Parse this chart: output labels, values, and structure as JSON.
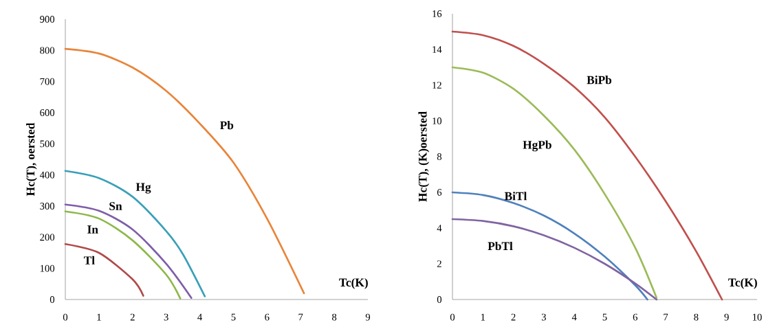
{
  "chart_data": [
    {
      "type": "line",
      "xlabel": "Tc(K)",
      "ylabel": "Hc(T), oersted",
      "xlim": [
        0,
        9
      ],
      "ylim": [
        0,
        900
      ],
      "xticks": [
        0,
        1,
        2,
        3,
        4,
        5,
        6,
        7,
        8,
        9
      ],
      "yticks": [
        0,
        100,
        200,
        300,
        400,
        500,
        600,
        700,
        800,
        900
      ],
      "series": [
        {
          "name": "Pb",
          "color": "#e8853a",
          "x": [
            0,
            1,
            2,
            3,
            4,
            5,
            6,
            7.1
          ],
          "values": [
            805,
            790,
            745,
            670,
            565,
            440,
            260,
            20
          ]
        },
        {
          "name": "Hg",
          "color": "#3aa0b8",
          "x": [
            0,
            1,
            2,
            3,
            3.5,
            4.15
          ],
          "values": [
            413,
            390,
            330,
            220,
            145,
            10
          ]
        },
        {
          "name": "Sn",
          "color": "#7f5ea8",
          "x": [
            0,
            1,
            2,
            3,
            3.75
          ],
          "values": [
            305,
            285,
            225,
            115,
            5
          ]
        },
        {
          "name": "In",
          "color": "#8db84a",
          "x": [
            0,
            1,
            2,
            3,
            3.42
          ],
          "values": [
            283,
            260,
            190,
            80,
            3
          ]
        },
        {
          "name": "Tl",
          "color": "#b04a4a",
          "x": [
            0,
            1,
            2,
            2.32
          ],
          "values": [
            178,
            150,
            65,
            12
          ]
        }
      ]
    },
    {
      "type": "line",
      "xlabel": "Tc(K)",
      "ylabel": "Hc(T), (K)oersted",
      "xlim": [
        0,
        10
      ],
      "ylim": [
        0,
        16
      ],
      "xticks": [
        0,
        1,
        2,
        3,
        4,
        5,
        6,
        7,
        8,
        9,
        10
      ],
      "yticks": [
        0,
        2,
        4,
        6,
        8,
        10,
        12,
        14,
        16
      ],
      "series": [
        {
          "name": "BiPb",
          "color": "#c0504d",
          "x": [
            0,
            1,
            2,
            3,
            4,
            5,
            6,
            7,
            8,
            8.85
          ],
          "values": [
            15,
            14.8,
            14.2,
            13.2,
            11.9,
            10.2,
            8.0,
            5.5,
            2.7,
            0
          ]
        },
        {
          "name": "HgPb",
          "color": "#9bbb59",
          "x": [
            0,
            1,
            2,
            3,
            4,
            5,
            6,
            6.7
          ],
          "values": [
            13,
            12.7,
            11.8,
            10.3,
            8.4,
            5.9,
            2.9,
            0.1
          ]
        },
        {
          "name": "BiTl",
          "color": "#4f81bd",
          "x": [
            0,
            1,
            2,
            3,
            4,
            5,
            6,
            6.4
          ],
          "values": [
            6,
            5.85,
            5.4,
            4.7,
            3.7,
            2.4,
            0.8,
            0
          ]
        },
        {
          "name": "PbTl",
          "color": "#8064a2",
          "x": [
            0,
            1,
            2,
            3,
            4,
            5,
            6,
            6.7
          ],
          "values": [
            4.5,
            4.4,
            4.1,
            3.6,
            2.9,
            2.0,
            0.9,
            0
          ]
        }
      ]
    }
  ]
}
